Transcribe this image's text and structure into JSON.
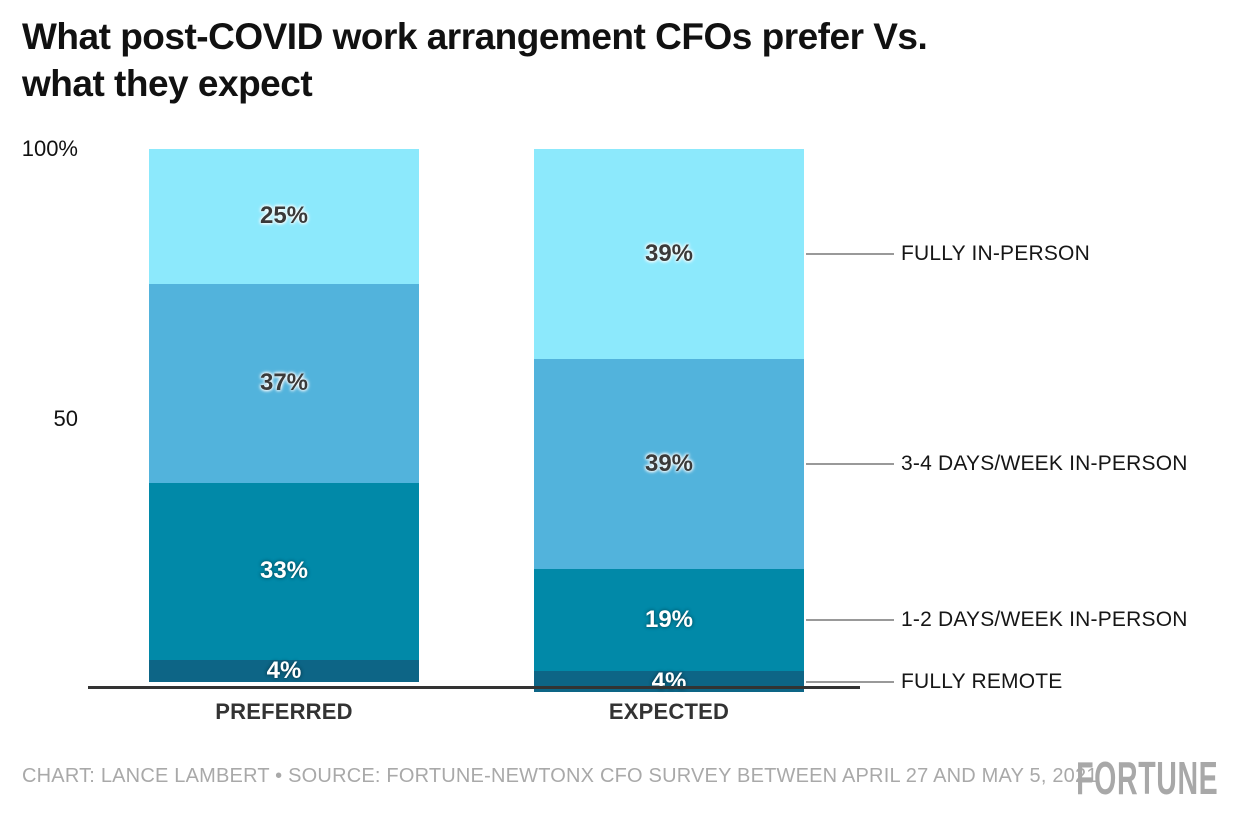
{
  "title": {
    "line1": "What post-COVID work arrangement CFOs prefer Vs.",
    "line2": "what they expect"
  },
  "y_axis": {
    "top_label": "100%",
    "mid_label": "50"
  },
  "chart_data": {
    "type": "bar",
    "subtype": "stacked-percentage",
    "title": "What post-COVID work arrangement CFOs prefer Vs. what they expect",
    "categories": [
      "PREFERRED",
      "EXPECTED"
    ],
    "series": [
      {
        "name": "FULLY IN-PERSON",
        "color": "#8CE9FC",
        "values": [
          25,
          39
        ]
      },
      {
        "name": "3-4 DAYS/WEEK IN-PERSON",
        "color": "#52B3DC",
        "values": [
          37,
          39
        ]
      },
      {
        "name": "1-2 DAYS/WEEK IN-PERSON",
        "color": "#0189A8",
        "values": [
          33,
          19
        ]
      },
      {
        "name": "FULLY REMOTE",
        "color": "#0D6586",
        "values": [
          4,
          4
        ]
      }
    ],
    "value_suffix": "%",
    "ylim": [
      0,
      100
    ],
    "grid": false,
    "legend_position": "right",
    "axis_color": "#333333",
    "legend_line_color": "#999999"
  },
  "footer": {
    "credit": "CHART: LANCE LAMBERT • SOURCE: FORTUNE-NEWTONX CFO SURVEY BETWEEN APRIL 27 AND MAY 5, 2021",
    "logo": "FORTUNE"
  }
}
